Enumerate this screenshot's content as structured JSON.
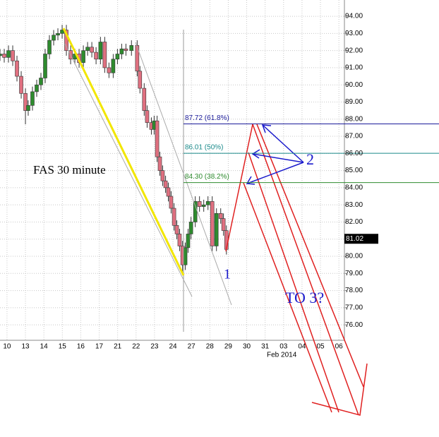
{
  "chart_data": {
    "type": "candlestick",
    "title": "FAS 30 minute",
    "categories": [
      "10",
      "13",
      "14",
      "15",
      "16",
      "17",
      "21",
      "22",
      "23",
      "24",
      "27",
      "28",
      "29",
      "30",
      "31",
      "03",
      "04",
      "05",
      "06"
    ],
    "x_label": "Feb 2014",
    "xlim": [
      -0.38,
      18.3
    ],
    "ylim": [
      75.1,
      94.95
    ],
    "yticks": [
      {
        "value": 76,
        "label": "76.00"
      },
      {
        "value": 77,
        "label": "77.00"
      },
      {
        "value": 78,
        "label": "78.00"
      },
      {
        "value": 79,
        "label": "79.00"
      },
      {
        "value": 80,
        "label": "80.00"
      },
      {
        "value": 81,
        "label": "81.00"
      },
      {
        "value": 82,
        "label": "82.00"
      },
      {
        "value": 83,
        "label": "83.00"
      },
      {
        "value": 84,
        "label": "84.00"
      },
      {
        "value": 85,
        "label": "85.00"
      },
      {
        "value": 86,
        "label": "86.00"
      },
      {
        "value": 87,
        "label": "87.00"
      },
      {
        "value": 88,
        "label": "88.00"
      },
      {
        "value": 89,
        "label": "89.00"
      },
      {
        "value": 90,
        "label": "90.00"
      },
      {
        "value": 91,
        "label": "91.00"
      },
      {
        "value": 92,
        "label": "92.00"
      },
      {
        "value": 93,
        "label": "93.00"
      },
      {
        "value": 94,
        "label": "94.00"
      }
    ],
    "grid": true,
    "up_color": "#2e8b2e",
    "down_color": "#e07080",
    "last_price": {
      "value": 81.02,
      "label": "81.02"
    },
    "fib_levels": [
      {
        "value": 87.72,
        "label": "87.72 (61.8%)",
        "color": "#1a1a99"
      },
      {
        "value": 86.01,
        "label": "86.01 (50%)",
        "color": "#1a8a8a"
      },
      {
        "value": 84.3,
        "label": "84.30 (38.2%)",
        "color": "#2e8b2e"
      }
    ],
    "annotations": [
      "2",
      "1",
      "TO 3?"
    ],
    "x": [
      -0.38,
      -0.15,
      0.08,
      0.31,
      0.54,
      0.77,
      1.0,
      1.15,
      1.38,
      1.61,
      1.84,
      2.07,
      2.3,
      2.53,
      2.76,
      2.99,
      3.22,
      3.45,
      3.68,
      3.91,
      4.14,
      4.37,
      4.6,
      4.83,
      5.07,
      5.3,
      5.53,
      5.76,
      5.99,
      6.22,
      6.45,
      6.75,
      7.06,
      7.21,
      7.44,
      7.6,
      7.83,
      7.98,
      8.14,
      8.29,
      8.44,
      8.6,
      8.75,
      8.9,
      9.06,
      9.21,
      9.36,
      9.52,
      9.67,
      9.82,
      9.98,
      10.21,
      10.44,
      10.67,
      10.9,
      11.13,
      11.36,
      11.59,
      11.74,
      11.9
    ],
    "open": [
      91.7,
      91.8,
      91.6,
      92.0,
      91.4,
      90.5,
      89.5,
      88.5,
      88.8,
      89.6,
      90.0,
      90.4,
      91.8,
      92.6,
      92.9,
      93.0,
      93.2,
      92.0,
      91.5,
      91.8,
      91.3,
      92.0,
      92.2,
      91.9,
      91.5,
      92.5,
      91.0,
      90.7,
      91.5,
      91.8,
      92.1,
      92.0,
      92.3,
      90.8,
      89.8,
      88.5,
      87.8,
      87.4,
      87.9,
      85.8,
      85.0,
      84.4,
      84.0,
      83.5,
      82.8,
      81.8,
      81.3,
      80.6,
      79.5,
      80.5,
      81.3,
      82.0,
      83.2,
      82.9,
      83.0,
      83.2,
      80.6,
      82.5,
      82.2,
      81.5
    ],
    "high": [
      92.1,
      92.1,
      92.3,
      92.3,
      91.7,
      90.8,
      89.8,
      89.1,
      89.9,
      90.3,
      90.7,
      92.1,
      92.9,
      93.2,
      93.3,
      93.5,
      93.5,
      92.3,
      92.1,
      92.1,
      92.3,
      92.5,
      92.5,
      92.2,
      92.8,
      92.8,
      91.3,
      91.8,
      92.1,
      92.4,
      92.4,
      92.6,
      92.6,
      91.1,
      90.1,
      88.8,
      88.1,
      88.2,
      88.2,
      86.1,
      85.3,
      84.7,
      84.3,
      83.8,
      83.1,
      82.1,
      81.6,
      80.9,
      80.8,
      81.6,
      82.3,
      83.5,
      83.5,
      83.3,
      83.5,
      83.5,
      82.8,
      82.8,
      82.5,
      81.8
    ],
    "low": [
      91.4,
      91.3,
      91.3,
      91.1,
      90.2,
      89.2,
      87.7,
      88.2,
      88.5,
      89.3,
      89.7,
      90.1,
      91.5,
      92.3,
      92.6,
      92.7,
      91.7,
      91.2,
      91.2,
      91.0,
      91.0,
      91.7,
      91.6,
      91.2,
      91.2,
      90.7,
      90.4,
      90.4,
      91.2,
      91.5,
      91.7,
      91.7,
      90.5,
      89.5,
      88.2,
      87.5,
      87.1,
      87.1,
      85.5,
      84.7,
      84.1,
      83.7,
      83.2,
      82.5,
      81.5,
      81.0,
      80.3,
      79.0,
      79.2,
      80.2,
      81.0,
      81.7,
      82.6,
      82.6,
      82.7,
      80.3,
      80.3,
      81.9,
      81.2,
      80.1
    ],
    "close": [
      91.8,
      91.6,
      92.0,
      91.4,
      90.5,
      89.5,
      88.5,
      88.8,
      89.6,
      90.0,
      90.4,
      91.8,
      92.6,
      92.9,
      93.0,
      93.2,
      92.0,
      91.5,
      91.8,
      91.3,
      92.0,
      92.2,
      91.9,
      91.5,
      92.5,
      91.0,
      90.7,
      91.5,
      91.8,
      92.1,
      92.0,
      92.3,
      90.8,
      89.8,
      88.5,
      87.8,
      87.4,
      87.9,
      85.8,
      85.0,
      84.4,
      84.0,
      83.5,
      82.8,
      81.8,
      81.3,
      80.6,
      79.5,
      80.5,
      81.3,
      82.0,
      83.2,
      82.9,
      83.0,
      83.2,
      80.6,
      82.5,
      82.2,
      81.5,
      80.4
    ]
  }
}
